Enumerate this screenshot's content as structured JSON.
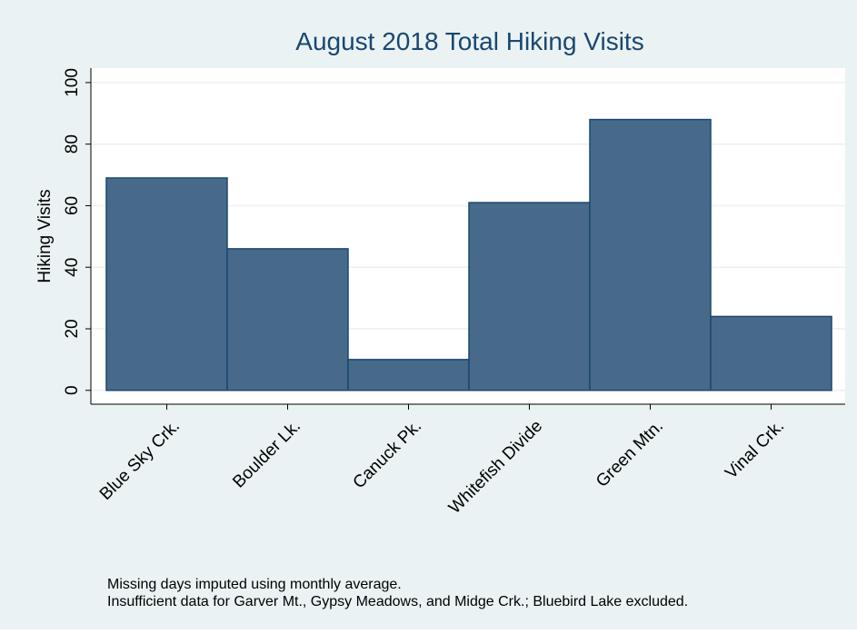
{
  "chart_data": {
    "type": "bar",
    "title": "August 2018 Total Hiking Visits",
    "y_label": "Hiking Visits",
    "categories": [
      "Blue Sky Crk.",
      "Boulder Lk.",
      "Canuck Pk.",
      "Whitefish Divide",
      "Green Mtn.",
      "Vinal Crk."
    ],
    "values": [
      69,
      46,
      10,
      61,
      88,
      24
    ],
    "color": "#476a8a",
    "ylim": [
      -4.5,
      104.7
    ],
    "yticks": [
      0,
      20,
      40,
      60,
      80,
      100
    ],
    "grid": true,
    "notes": [
      "Missing days imputed using monthly average.",
      "Insufficient data for Garver Mt., Gypsy Meadows, and Midge Crk.; Bluebird Lake excluded."
    ]
  }
}
